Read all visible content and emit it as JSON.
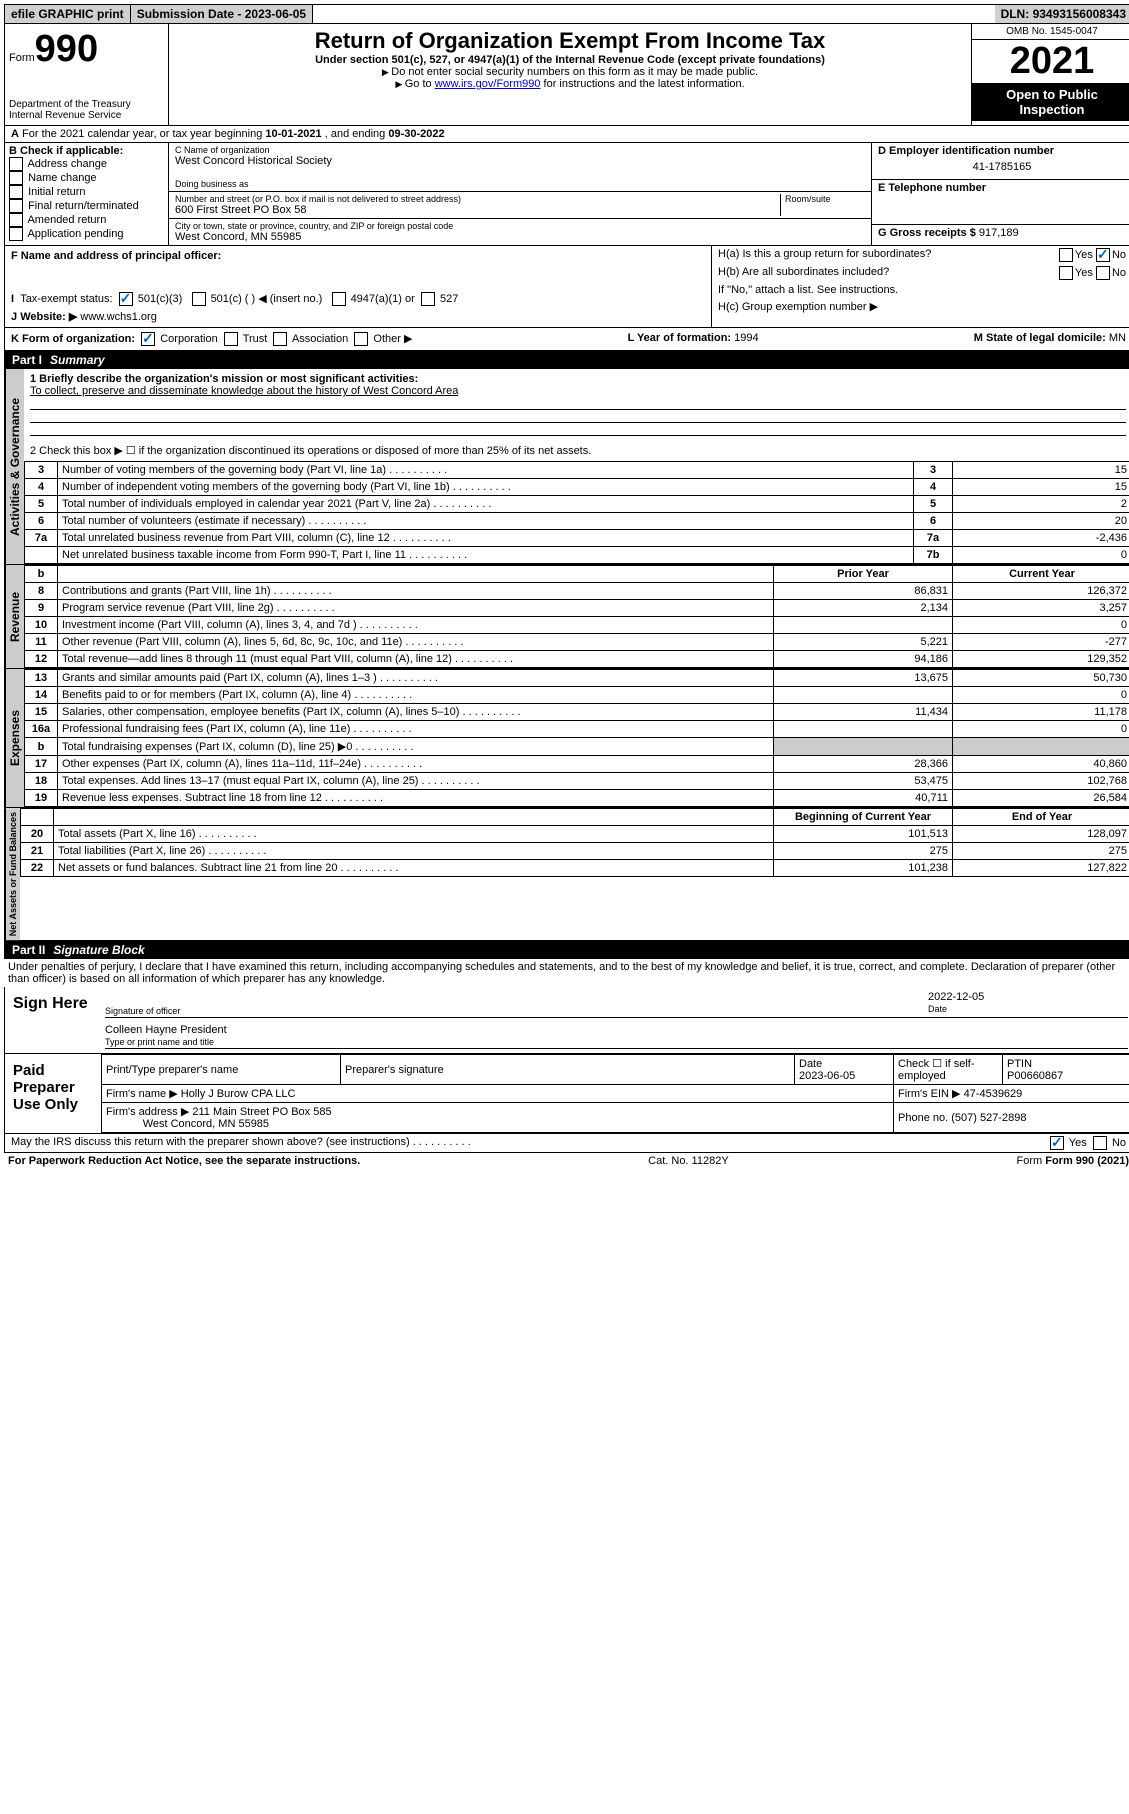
{
  "topbar": {
    "efile": "efile GRAPHIC print",
    "subdate_label": "Submission Date - ",
    "subdate": "2023-06-05",
    "dln_label": "DLN: ",
    "dln": "93493156008343"
  },
  "header": {
    "form_prefix": "Form",
    "form_num": "990",
    "title": "Return of Organization Exempt From Income Tax",
    "sub": "Under section 501(c), 527, or 4947(a)(1) of the Internal Revenue Code (except private foundations)",
    "note1": "Do not enter social security numbers on this form as it may be made public.",
    "note2_pre": "Go to ",
    "note2_link": "www.irs.gov/Form990",
    "note2_post": " for instructions and the latest information.",
    "omb": "OMB No. 1545-0047",
    "year": "2021",
    "open": "Open to Public Inspection",
    "dept": "Department of the Treasury",
    "irs": "Internal Revenue Service"
  },
  "rowA": {
    "label": "A",
    "text_pre": "For the 2021 calendar year, or tax year beginning ",
    "begin": "10-01-2021",
    "mid": " , and ending ",
    "end": "09-30-2022"
  },
  "blockB": {
    "label": "B Check if applicable:",
    "items": [
      "Address change",
      "Name change",
      "Initial return",
      "Final return/terminated",
      "Amended return",
      "Application pending"
    ]
  },
  "blockC": {
    "name_lbl": "C Name of organization",
    "name": "West Concord Historical Society",
    "dba_lbl": "Doing business as",
    "dba": "",
    "addr_lbl": "Number and street (or P.O. box if mail is not delivered to street address)",
    "room_lbl": "Room/suite",
    "addr": "600 First Street PO Box 58",
    "city_lbl": "City or town, state or province, country, and ZIP or foreign postal code",
    "city": "West Concord, MN  55985"
  },
  "blockD": {
    "lbl": "D Employer identification number",
    "val": "41-1785165"
  },
  "blockE": {
    "lbl": "E Telephone number",
    "val": ""
  },
  "blockG": {
    "lbl": "G Gross receipts $",
    "val": "917,189"
  },
  "blockF": {
    "lbl": "F Name and address of principal officer:"
  },
  "blockH": {
    "ha": "H(a)  Is this a group return for subordinates?",
    "hb": "H(b)  Are all subordinates included?",
    "hb_note": "If \"No,\" attach a list. See instructions.",
    "hc": "H(c)  Group exemption number ▶",
    "yes": "Yes",
    "no": "No"
  },
  "rowI": {
    "lbl": "I",
    "text": "Tax-exempt status:",
    "opts": [
      "501(c)(3)",
      "501(c) (  ) ◀ (insert no.)",
      "4947(a)(1) or",
      "527"
    ]
  },
  "rowJ": {
    "lbl": "J",
    "text": "Website: ▶",
    "val": "www.wchs1.org"
  },
  "rowK": {
    "lbl": "K Form of organization:",
    "opts": [
      "Corporation",
      "Trust",
      "Association",
      "Other ▶"
    ]
  },
  "rowL": {
    "lbl": "L Year of formation:",
    "val": "1994"
  },
  "rowM": {
    "lbl": "M State of legal domicile:",
    "val": "MN"
  },
  "part1": {
    "num": "Part I",
    "title": "Summary"
  },
  "mission": {
    "lbl": "1  Briefly describe the organization's mission or most significant activities:",
    "val": "To collect, preserve and disseminate knowledge about the history of West Concord Area"
  },
  "line2": "2   Check this box ▶ ☐  if the organization discontinued its operations or disposed of more than 25% of its net assets.",
  "gov_lines": [
    {
      "n": "3",
      "t": "Number of voting members of the governing body (Part VI, line 1a)",
      "box": "3",
      "v": "15"
    },
    {
      "n": "4",
      "t": "Number of independent voting members of the governing body (Part VI, line 1b)",
      "box": "4",
      "v": "15"
    },
    {
      "n": "5",
      "t": "Total number of individuals employed in calendar year 2021 (Part V, line 2a)",
      "box": "5",
      "v": "2"
    },
    {
      "n": "6",
      "t": "Total number of volunteers (estimate if necessary)",
      "box": "6",
      "v": "20"
    },
    {
      "n": "7a",
      "t": "Total unrelated business revenue from Part VIII, column (C), line 12",
      "box": "7a",
      "v": "-2,436"
    },
    {
      "n": "",
      "t": "Net unrelated business taxable income from Form 990-T, Part I, line 11",
      "box": "7b",
      "v": "0"
    }
  ],
  "col_headers": {
    "b": "b",
    "prior": "Prior Year",
    "current": "Current Year",
    "boy": "Beginning of Current Year",
    "eoy": "End of Year"
  },
  "revenue": [
    {
      "n": "8",
      "t": "Contributions and grants (Part VIII, line 1h)",
      "p": "86,831",
      "c": "126,372"
    },
    {
      "n": "9",
      "t": "Program service revenue (Part VIII, line 2g)",
      "p": "2,134",
      "c": "3,257"
    },
    {
      "n": "10",
      "t": "Investment income (Part VIII, column (A), lines 3, 4, and 7d )",
      "p": "",
      "c": "0"
    },
    {
      "n": "11",
      "t": "Other revenue (Part VIII, column (A), lines 5, 6d, 8c, 9c, 10c, and 11e)",
      "p": "5,221",
      "c": "-277"
    },
    {
      "n": "12",
      "t": "Total revenue—add lines 8 through 11 (must equal Part VIII, column (A), line 12)",
      "p": "94,186",
      "c": "129,352"
    }
  ],
  "expenses": [
    {
      "n": "13",
      "t": "Grants and similar amounts paid (Part IX, column (A), lines 1–3 )",
      "p": "13,675",
      "c": "50,730"
    },
    {
      "n": "14",
      "t": "Benefits paid to or for members (Part IX, column (A), line 4)",
      "p": "",
      "c": "0"
    },
    {
      "n": "15",
      "t": "Salaries, other compensation, employee benefits (Part IX, column (A), lines 5–10)",
      "p": "11,434",
      "c": "11,178"
    },
    {
      "n": "16a",
      "t": "Professional fundraising fees (Part IX, column (A), line 11e)",
      "p": "",
      "c": "0"
    },
    {
      "n": "b",
      "t": "Total fundraising expenses (Part IX, column (D), line 25) ▶0",
      "p": "grey",
      "c": "grey"
    },
    {
      "n": "17",
      "t": "Other expenses (Part IX, column (A), lines 11a–11d, 11f–24e)",
      "p": "28,366",
      "c": "40,860"
    },
    {
      "n": "18",
      "t": "Total expenses. Add lines 13–17 (must equal Part IX, column (A), line 25)",
      "p": "53,475",
      "c": "102,768"
    },
    {
      "n": "19",
      "t": "Revenue less expenses. Subtract line 18 from line 12",
      "p": "40,711",
      "c": "26,584"
    }
  ],
  "netassets": [
    {
      "n": "20",
      "t": "Total assets (Part X, line 16)",
      "p": "101,513",
      "c": "128,097"
    },
    {
      "n": "21",
      "t": "Total liabilities (Part X, line 26)",
      "p": "275",
      "c": "275"
    },
    {
      "n": "22",
      "t": "Net assets or fund balances. Subtract line 21 from line 20",
      "p": "101,238",
      "c": "127,822"
    }
  ],
  "vtabs": {
    "gov": "Activities & Governance",
    "rev": "Revenue",
    "exp": "Expenses",
    "na": "Net Assets or Fund Balances"
  },
  "part2": {
    "num": "Part II",
    "title": "Signature Block"
  },
  "perjury": "Under penalties of perjury, I declare that I have examined this return, including accompanying schedules and statements, and to the best of my knowledge and belief, it is true, correct, and complete. Declaration of preparer (other than officer) is based on all information of which preparer has any knowledge.",
  "sign": {
    "here": "Sign Here",
    "sig_lbl": "Signature of officer",
    "date_lbl": "Date",
    "date": "2022-12-05",
    "name": "Colleen Hayne  President",
    "name_lbl": "Type or print name and title"
  },
  "paid": {
    "lbl": "Paid Preparer Use Only",
    "h1": "Print/Type preparer's name",
    "h2": "Preparer's signature",
    "h3": "Date",
    "h3v": "2023-06-05",
    "h4": "Check ☐ if self-employed",
    "h5": "PTIN",
    "h5v": "P00660867",
    "firm_lbl": "Firm's name   ▶",
    "firm": "Holly J Burow CPA LLC",
    "ein_lbl": "Firm's EIN ▶",
    "ein": "47-4539629",
    "addr_lbl": "Firm's address ▶",
    "addr1": "211 Main Street PO Box 585",
    "addr2": "West Concord, MN  55985",
    "phone_lbl": "Phone no.",
    "phone": "(507) 527-2898"
  },
  "discuss": {
    "t": "May the IRS discuss this return with the preparer shown above? (see instructions)",
    "yes": "Yes",
    "no": "No"
  },
  "footer": {
    "pra": "For Paperwork Reduction Act Notice, see the separate instructions.",
    "cat": "Cat. No. 11282Y",
    "form": "Form 990 (2021)"
  }
}
